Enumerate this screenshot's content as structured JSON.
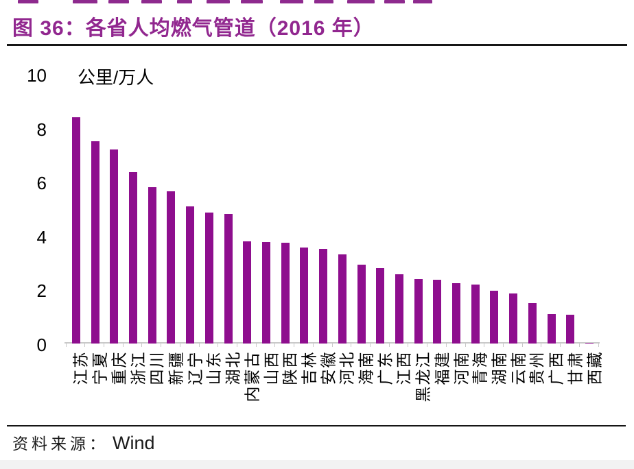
{
  "header": {
    "title": "图 36：各省人均燃气管道（2016 年）"
  },
  "chart_data": {
    "type": "bar",
    "title": "图 36：各省人均燃气管道（2016 年）",
    "unit_label": "公里/万人",
    "categories": [
      "江苏",
      "宁夏",
      "重庆",
      "浙江",
      "四川",
      "新疆",
      "辽宁",
      "山东",
      "湖北",
      "内蒙古",
      "山西",
      "陕西",
      "吉林",
      "安徽",
      "河北",
      "海南",
      "广东",
      "江西",
      "黑龙江",
      "福建",
      "河南",
      "青海",
      "湖南",
      "云南",
      "贵州",
      "广西",
      "甘肃",
      "西藏"
    ],
    "values": [
      8.4,
      7.5,
      7.2,
      6.35,
      5.8,
      5.65,
      5.1,
      4.85,
      4.8,
      3.8,
      3.77,
      3.73,
      3.57,
      3.5,
      3.32,
      2.93,
      2.8,
      2.57,
      2.4,
      2.37,
      2.25,
      2.18,
      1.95,
      1.85,
      1.5,
      1.1,
      1.06,
      0.02
    ],
    "ylim": [
      0,
      10
    ],
    "yticks": [
      10,
      8,
      6,
      4,
      2,
      0
    ],
    "grid": false,
    "legend": "none",
    "bar_color": "#8e0e8e",
    "axis_color": "#c9c9c9"
  },
  "footer": {
    "source_label": "资料来源：",
    "source_value": "Wind"
  }
}
